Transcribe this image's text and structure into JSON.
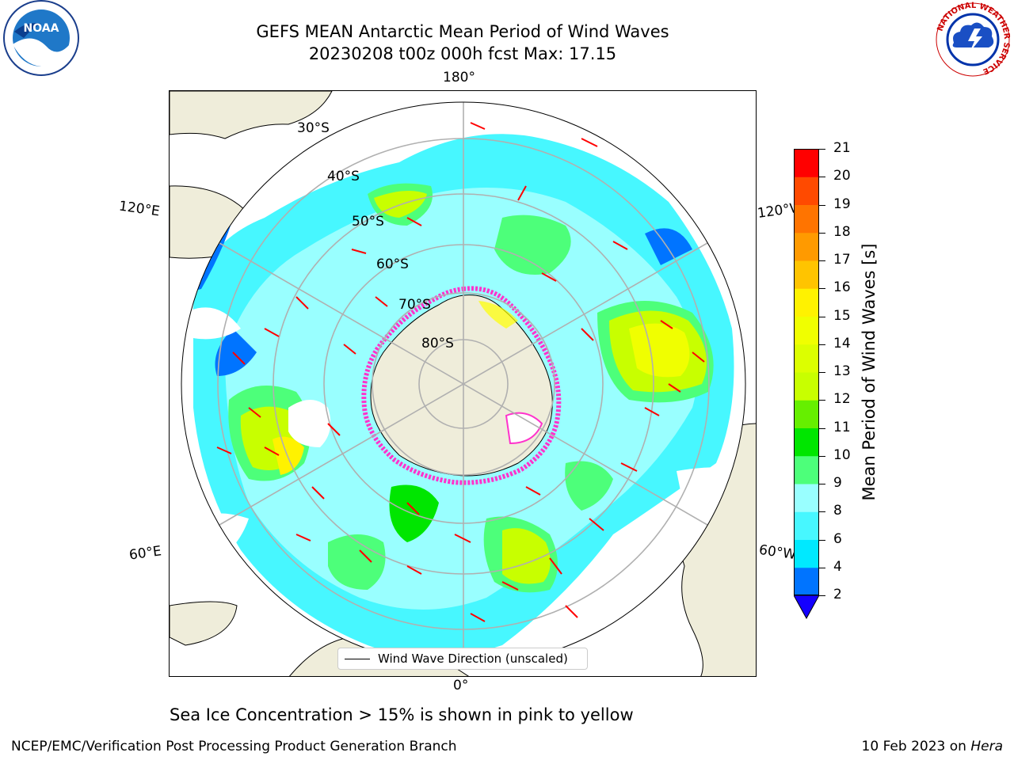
{
  "header": {
    "title_line1": "GEFS MEAN Antarctic Mean Period of Wind Waves",
    "title_line2": "20230208 t00z 000h fcst   Max: 17.15"
  },
  "logos": {
    "noaa": "NOAA",
    "nws_ring": "NATIONAL WEATHER SERVICE"
  },
  "map": {
    "projection": "south-polar-stereographic",
    "longitude_labels": {
      "top": "180°",
      "bottom": "0°",
      "left_upper": "120°E",
      "left_lower": "60°E",
      "right_upper": "120°W",
      "right_lower": "60°W"
    },
    "latitude_labels": [
      "30°S",
      "40°S",
      "50°S",
      "60°S",
      "70°S",
      "80°S"
    ],
    "legend_label": "Wind Wave Direction (unscaled)",
    "colors": {
      "land": "#efedda",
      "sea_ice_low": "#ff33cc",
      "sea_ice_high": "#ffff00",
      "vector": "#ff0000",
      "graticule": "#b0b0b0"
    }
  },
  "colorbar": {
    "label": "Mean Period of Wind Waves [s]",
    "ticks": [
      "2",
      "4",
      "6",
      "8",
      "9",
      "10",
      "11",
      "12",
      "13",
      "14",
      "15",
      "16",
      "17",
      "18",
      "19",
      "20",
      "21"
    ],
    "colors": [
      "#0074ff",
      "#00e9ff",
      "#47f7ff",
      "#99ffff",
      "#4dff7a",
      "#00e600",
      "#66ef00",
      "#c8ff00",
      "#dcff00",
      "#f0ff00",
      "#fff200",
      "#ffc400",
      "#ff9a00",
      "#ff7400",
      "#ff4a00",
      "#ff0000"
    ],
    "under_color": "#1400ff"
  },
  "note": "Sea Ice Concentration > 15% is shown in pink to yellow",
  "footer": {
    "left": "NCEP/EMC/Verification Post Processing Product Generation Branch",
    "right_date": "10 Feb 2023 on ",
    "right_host": "Hera"
  }
}
